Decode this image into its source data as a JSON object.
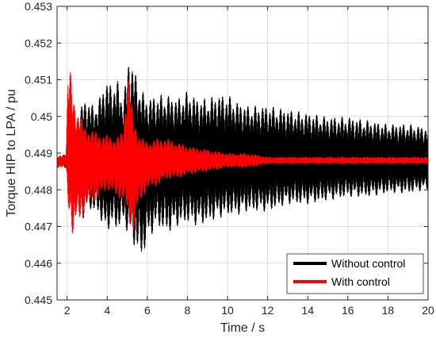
{
  "chart_data": {
    "type": "line",
    "title": "",
    "xlabel": "Time / s",
    "ylabel": "Torque HIP to LPA / pu",
    "xlim": [
      1.5,
      20
    ],
    "ylim": [
      0.445,
      0.453
    ],
    "xticks": [
      2,
      4,
      6,
      8,
      10,
      12,
      14,
      16,
      18,
      20
    ],
    "yticks": [
      0.445,
      0.446,
      0.447,
      0.448,
      0.449,
      0.45,
      0.451,
      0.452,
      0.453
    ],
    "xtick_labels": [
      "2",
      "4",
      "6",
      "8",
      "10",
      "12",
      "14",
      "16",
      "18",
      "20"
    ],
    "ytick_labels": [
      "0.445",
      "0.446",
      "0.447",
      "0.448",
      "0.449",
      "0.45",
      "0.451",
      "0.452",
      "0.453"
    ],
    "grid": true,
    "legend_position": "bottom-right",
    "baseline": 0.4488,
    "series": [
      {
        "name": "Without control",
        "color": "#000000",
        "envelope": {
          "x": [
            1.5,
            1.95,
            2.05,
            2.3,
            2.6,
            2.8,
            3.0,
            3.3,
            3.6,
            3.9,
            4.2,
            4.5,
            4.8,
            5.1,
            5.3,
            5.5,
            5.75,
            6.0,
            6.5,
            7.0,
            7.5,
            8.0,
            8.5,
            9.0,
            9.5,
            10.0,
            10.5,
            11.0,
            12.0,
            13.0,
            14.0,
            15.0,
            16.0,
            17.0,
            18.0,
            19.0,
            20.0
          ],
          "upper": [
            0.4489,
            0.449,
            0.4492,
            0.4496,
            0.4502,
            0.4504,
            0.4505,
            0.4503,
            0.4505,
            0.451,
            0.4509,
            0.451,
            0.4505,
            0.4517,
            0.4514,
            0.451,
            0.4507,
            0.4505,
            0.4506,
            0.4506,
            0.4505,
            0.4507,
            0.4505,
            0.4505,
            0.4506,
            0.4506,
            0.4504,
            0.4503,
            0.4503,
            0.4502,
            0.4501,
            0.45,
            0.45,
            0.4499,
            0.4498,
            0.4498,
            0.4497
          ],
          "lower": [
            0.4486,
            0.4486,
            0.4482,
            0.4477,
            0.4473,
            0.4472,
            0.4475,
            0.4474,
            0.4473,
            0.4468,
            0.447,
            0.4469,
            0.4471,
            0.4467,
            0.4465,
            0.4463,
            0.4461,
            0.4466,
            0.447,
            0.4468,
            0.447,
            0.4471,
            0.447,
            0.4471,
            0.4472,
            0.4473,
            0.4473,
            0.4474,
            0.4474,
            0.4476,
            0.4476,
            0.4477,
            0.4478,
            0.4478,
            0.4479,
            0.4479,
            0.448
          ]
        }
      },
      {
        "name": "With control",
        "color": "#ff0000",
        "envelope": {
          "x": [
            1.5,
            1.95,
            2.05,
            2.15,
            2.3,
            2.5,
            2.7,
            2.9,
            3.1,
            3.4,
            3.7,
            4.0,
            4.4,
            4.8,
            5.0,
            5.1,
            5.3,
            5.6,
            6.0,
            6.5,
            7.0,
            7.5,
            8.0,
            9.0,
            10.0,
            11.0,
            12.0,
            14.0,
            16.0,
            18.0,
            20.0
          ],
          "upper": [
            0.4489,
            0.449,
            0.4514,
            0.4513,
            0.4506,
            0.4502,
            0.45,
            0.4497,
            0.4497,
            0.4496,
            0.4495,
            0.4495,
            0.4494,
            0.4496,
            0.4512,
            0.4512,
            0.4499,
            0.4495,
            0.4493,
            0.4494,
            0.4494,
            0.4493,
            0.4492,
            0.4491,
            0.449,
            0.449,
            0.4489,
            0.4489,
            0.4489,
            0.4489,
            0.4489
          ],
          "lower": [
            0.4486,
            0.4486,
            0.4476,
            0.4473,
            0.4466,
            0.4471,
            0.4472,
            0.4474,
            0.4476,
            0.4477,
            0.4478,
            0.448,
            0.4478,
            0.4477,
            0.4473,
            0.4471,
            0.4468,
            0.4476,
            0.448,
            0.4481,
            0.4483,
            0.4483,
            0.4484,
            0.4485,
            0.4486,
            0.4486,
            0.4487,
            0.4487,
            0.4487,
            0.4487,
            0.4487
          ]
        }
      }
    ]
  },
  "legend": {
    "items": [
      "Without control",
      "With control"
    ]
  }
}
